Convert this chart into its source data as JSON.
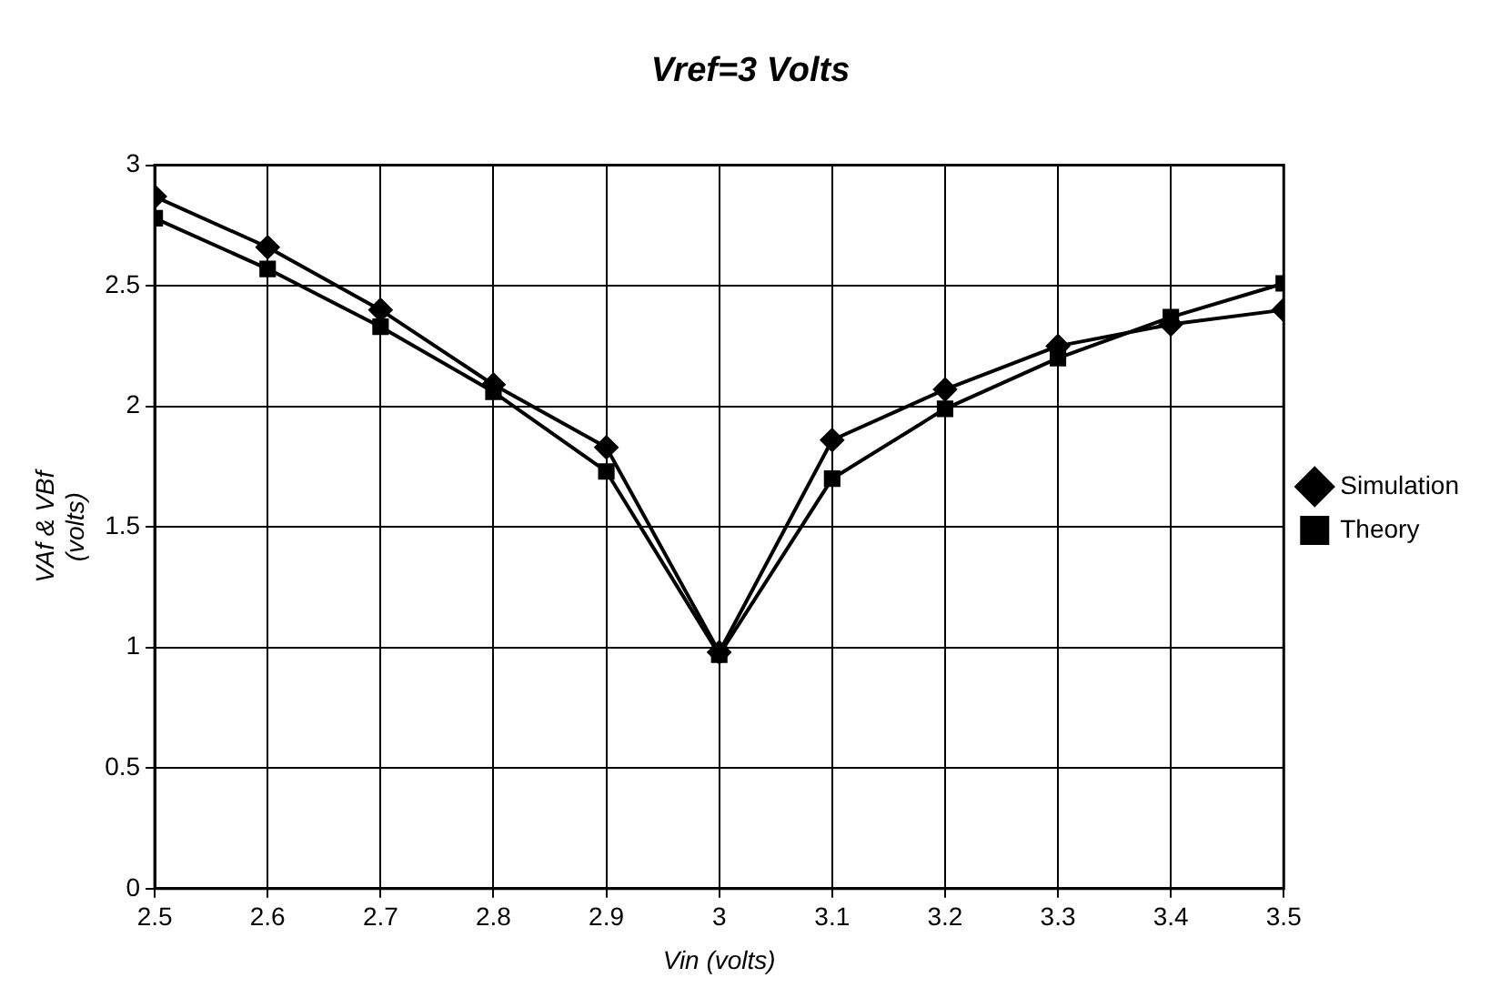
{
  "chart_data": {
    "type": "line",
    "title": "Vref=3 Volts",
    "xlabel": "Vin (volts)",
    "ylabel": "VAf & VBf\n(volts)",
    "x": [
      2.5,
      2.6,
      2.7,
      2.8,
      2.9,
      3,
      3.1,
      3.2,
      3.3,
      3.4,
      3.5
    ],
    "series": [
      {
        "name": "Simulation",
        "color": "#000000",
        "marker": "diamond",
        "values": [
          2.87,
          2.66,
          2.4,
          2.09,
          1.83,
          0.98,
          1.86,
          2.07,
          2.25,
          2.34,
          2.4
        ]
      },
      {
        "name": "Theory",
        "color": "#000000",
        "marker": "square",
        "values": [
          2.78,
          2.57,
          2.33,
          2.06,
          1.73,
          0.97,
          1.7,
          1.99,
          2.2,
          2.37,
          2.51
        ]
      }
    ],
    "xlim": [
      2.5,
      3.5
    ],
    "xticks": [
      2.5,
      2.6,
      2.7,
      2.8,
      2.9,
      3,
      3.1,
      3.2,
      3.3,
      3.4,
      3.5
    ],
    "ylim": [
      0,
      3
    ],
    "yticks": [
      0,
      0.5,
      1,
      1.5,
      2,
      2.5,
      3
    ],
    "grid": true,
    "legend": "right",
    "line_style": "solid"
  }
}
